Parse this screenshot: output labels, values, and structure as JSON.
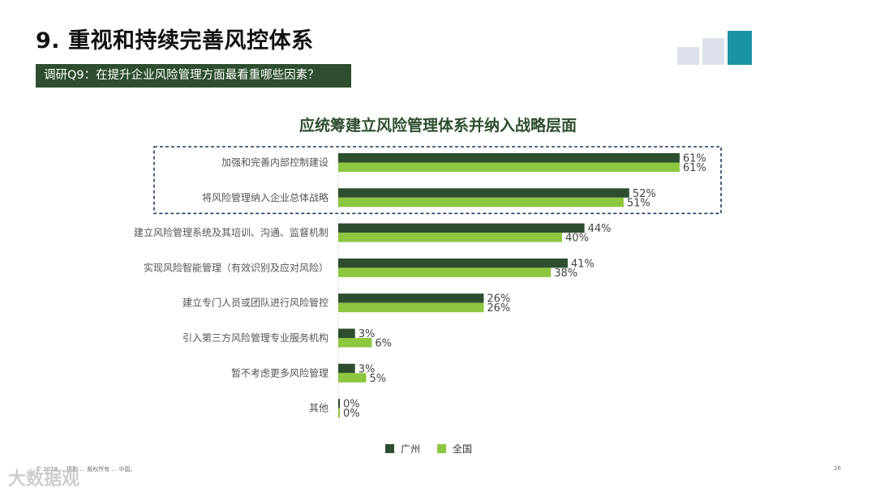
{
  "header": {
    "title": "9. 重视和持续完善风控体系",
    "question": "调研Q9：在提升企业风险管理方面最看重哪些因素？"
  },
  "colors": {
    "series_guangzhou": "#2e4e2f",
    "series_national": "#8dc63f",
    "banner": "#2e4e2f",
    "highlight_border": "#1f3a5f"
  },
  "chart_data": {
    "type": "bar",
    "orientation": "horizontal",
    "title": "应统筹建立风险管理体系并纳入战略层面",
    "categories": [
      "加强和完善内部控制建设",
      "将风险管理纳入企业总体战略",
      "建立风险管理系统及其培训、沟通、监督机制",
      "实现风险智能管理（有效识别及应对风险）",
      "建立专门人员或团队进行风险管控",
      "引入第三方风险管理专业服务机构",
      "暂不考虑更多风险管理",
      "其他"
    ],
    "series": [
      {
        "name": "广州",
        "values": [
          61,
          52,
          44,
          41,
          26,
          3,
          3,
          0
        ]
      },
      {
        "name": "全国",
        "values": [
          61,
          51,
          40,
          38,
          26,
          6,
          5,
          0
        ]
      }
    ],
    "value_suffix": "%",
    "xlim": [
      0,
      100
    ],
    "legend_position": "bottom",
    "highlighted_categories": [
      0,
      1
    ]
  },
  "footer": {
    "left": "© 2018 ... 德勤 ... 版权所有 ... 中国。",
    "page_number": "26",
    "watermark": "大数据观"
  }
}
